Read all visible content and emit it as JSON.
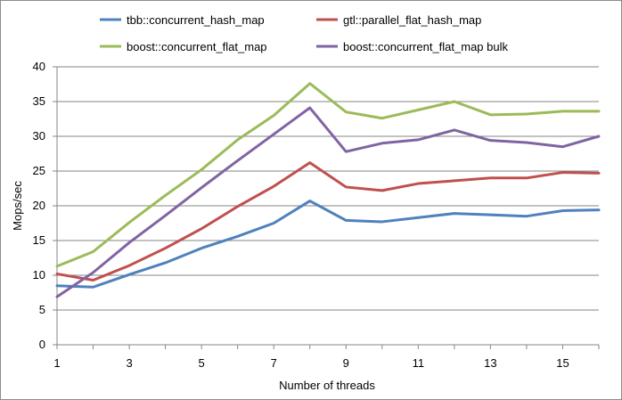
{
  "chart_data": {
    "type": "line",
    "xlabel": "Number of threads",
    "ylabel": "Mops/sec",
    "xlim": [
      1,
      16
    ],
    "ylim": [
      0,
      40
    ],
    "x": [
      1,
      2,
      3,
      4,
      5,
      6,
      7,
      8,
      9,
      10,
      11,
      12,
      13,
      14,
      15,
      16
    ],
    "x_ticks": [
      "1",
      "3",
      "5",
      "7",
      "9",
      "11",
      "13",
      "15"
    ],
    "y_ticks": [
      "0",
      "5",
      "10",
      "15",
      "20",
      "25",
      "30",
      "35",
      "40"
    ],
    "grid": "horizontal",
    "legend_position": "top",
    "series": [
      {
        "name": "tbb::concurrent_hash_map",
        "color": "#4f81bd",
        "values": [
          8.5,
          8.3,
          10.1,
          11.8,
          13.9,
          15.6,
          17.5,
          20.7,
          17.9,
          17.7,
          18.3,
          18.9,
          18.7,
          18.5,
          19.3,
          19.4
        ]
      },
      {
        "name": "gtl::parallel_flat_hash_map",
        "color": "#c0504d",
        "values": [
          10.2,
          9.3,
          11.4,
          13.9,
          16.7,
          19.9,
          22.8,
          26.2,
          22.7,
          22.2,
          23.2,
          23.6,
          24.0,
          24.0,
          24.8,
          24.7
        ]
      },
      {
        "name": "boost::concurrent_flat_map",
        "color": "#9bbb59",
        "values": [
          11.3,
          13.4,
          17.6,
          21.5,
          25.2,
          29.5,
          33.0,
          37.6,
          33.5,
          32.6,
          33.8,
          35.0,
          33.1,
          33.2,
          33.6,
          33.6
        ]
      },
      {
        "name": "boost::concurrent_flat_map bulk",
        "color": "#8064a2",
        "values": [
          6.9,
          10.4,
          14.7,
          18.6,
          22.6,
          26.5,
          30.3,
          34.1,
          27.8,
          29.0,
          29.5,
          30.9,
          29.4,
          29.1,
          28.5,
          30.0
        ]
      }
    ]
  }
}
